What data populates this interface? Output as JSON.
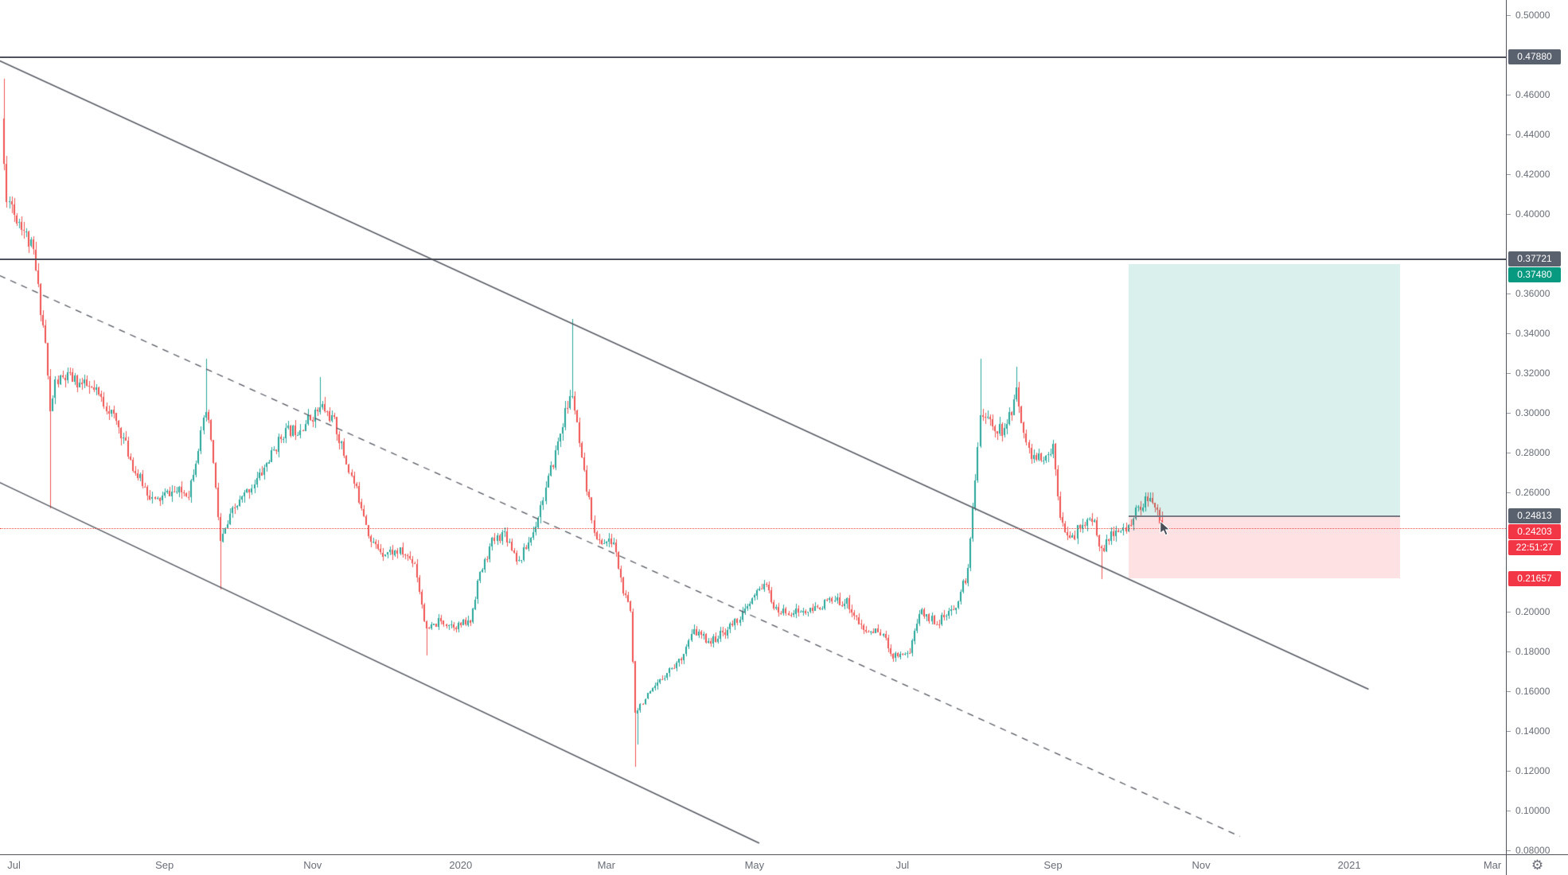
{
  "chart_data": {
    "type": "candlestick",
    "timeframe": "1D",
    "colors": {
      "up": "#26a69a",
      "down": "#ef5350",
      "channel_line": "#545861",
      "resistance_line": "#4d515b",
      "axis_text": "#686d78",
      "axis_border": "#50535e",
      "gray_label_bg": "#5a616e",
      "red_label_bg": "#f23645",
      "teal_label_bg": "#089981",
      "target_box_fill": "rgba(8,153,129,0.15)",
      "stop_box_fill": "rgba(242,54,69,0.15)",
      "entry_line": "#787b86",
      "last_price_line": "#ef5350"
    },
    "price_axis": {
      "visible_min": 0.078,
      "visible_max": 0.5075,
      "tick_step": 0.02,
      "ticks": [
        {
          "label": "0.50000",
          "price": 0.5
        },
        {
          "label": "0.46000",
          "price": 0.46
        },
        {
          "label": "0.44000",
          "price": 0.44
        },
        {
          "label": "0.42000",
          "price": 0.42
        },
        {
          "label": "0.40000",
          "price": 0.4
        },
        {
          "label": "0.36000",
          "price": 0.36
        },
        {
          "label": "0.34000",
          "price": 0.34
        },
        {
          "label": "0.32000",
          "price": 0.32
        },
        {
          "label": "0.30000",
          "price": 0.3
        },
        {
          "label": "0.28000",
          "price": 0.28
        },
        {
          "label": "0.26000",
          "price": 0.26
        },
        {
          "label": "0.20000",
          "price": 0.2
        },
        {
          "label": "0.18000",
          "price": 0.18
        },
        {
          "label": "0.16000",
          "price": 0.16
        },
        {
          "label": "0.14000",
          "price": 0.14
        },
        {
          "label": "0.12000",
          "price": 0.12
        },
        {
          "label": "0.10000",
          "price": 0.1
        },
        {
          "label": "0.08000",
          "price": 0.08
        }
      ]
    },
    "time_axis": {
      "labels": [
        {
          "label": "Jul",
          "day": 4
        },
        {
          "label": "Sep",
          "day": 66
        },
        {
          "label": "Nov",
          "day": 127
        },
        {
          "label": "2020",
          "day": 188
        },
        {
          "label": "Mar",
          "day": 248
        },
        {
          "label": "May",
          "day": 309
        },
        {
          "label": "Jul",
          "day": 370
        },
        {
          "label": "Sep",
          "day": 432
        },
        {
          "label": "Nov",
          "day": 493
        },
        {
          "label": "2021",
          "day": 554
        },
        {
          "label": "Mar",
          "day": 613
        }
      ]
    },
    "series": {
      "days_total": 478,
      "close_anchors": [
        [
          0,
          0.425
        ],
        [
          1,
          0.405
        ],
        [
          2,
          0.41
        ],
        [
          4,
          0.4
        ],
        [
          7,
          0.395
        ],
        [
          12,
          0.38
        ],
        [
          17,
          0.335
        ],
        [
          19,
          0.3
        ],
        [
          21,
          0.315
        ],
        [
          26,
          0.318
        ],
        [
          31,
          0.315
        ],
        [
          38,
          0.31
        ],
        [
          44,
          0.3
        ],
        [
          48,
          0.29
        ],
        [
          54,
          0.27
        ],
        [
          62,
          0.255
        ],
        [
          68,
          0.26
        ],
        [
          76,
          0.26
        ],
        [
          83,
          0.3
        ],
        [
          85,
          0.287
        ],
        [
          89,
          0.235
        ],
        [
          94,
          0.25
        ],
        [
          100,
          0.26
        ],
        [
          106,
          0.27
        ],
        [
          115,
          0.29
        ],
        [
          121,
          0.292
        ],
        [
          131,
          0.303
        ],
        [
          136,
          0.295
        ],
        [
          141,
          0.275
        ],
        [
          148,
          0.25
        ],
        [
          151,
          0.235
        ],
        [
          156,
          0.23
        ],
        [
          163,
          0.23
        ],
        [
          169,
          0.225
        ],
        [
          174,
          0.19
        ],
        [
          179,
          0.195
        ],
        [
          187,
          0.193
        ],
        [
          192,
          0.195
        ],
        [
          195,
          0.215
        ],
        [
          201,
          0.235
        ],
        [
          206,
          0.24
        ],
        [
          212,
          0.225
        ],
        [
          218,
          0.24
        ],
        [
          226,
          0.275
        ],
        [
          231,
          0.3
        ],
        [
          234,
          0.31
        ],
        [
          238,
          0.275
        ],
        [
          244,
          0.235
        ],
        [
          251,
          0.235
        ],
        [
          255,
          0.21
        ],
        [
          258,
          0.2
        ],
        [
          260,
          0.15
        ],
        [
          263,
          0.155
        ],
        [
          267,
          0.16
        ],
        [
          273,
          0.17
        ],
        [
          278,
          0.175
        ],
        [
          284,
          0.19
        ],
        [
          291,
          0.185
        ],
        [
          297,
          0.19
        ],
        [
          305,
          0.2
        ],
        [
          313,
          0.215
        ],
        [
          318,
          0.2
        ],
        [
          325,
          0.2
        ],
        [
          332,
          0.2
        ],
        [
          339,
          0.205
        ],
        [
          347,
          0.205
        ],
        [
          354,
          0.19
        ],
        [
          361,
          0.19
        ],
        [
          366,
          0.178
        ],
        [
          373,
          0.18
        ],
        [
          377,
          0.2
        ],
        [
          384,
          0.195
        ],
        [
          391,
          0.2
        ],
        [
          397,
          0.22
        ],
        [
          401,
          0.285
        ],
        [
          402,
          0.3
        ],
        [
          406,
          0.295
        ],
        [
          412,
          0.29
        ],
        [
          417,
          0.31
        ],
        [
          422,
          0.28
        ],
        [
          428,
          0.275
        ],
        [
          432,
          0.283
        ],
        [
          435,
          0.25
        ],
        [
          439,
          0.235
        ],
        [
          444,
          0.245
        ],
        [
          449,
          0.245
        ],
        [
          452,
          0.23
        ],
        [
          457,
          0.24
        ],
        [
          461,
          0.24
        ],
        [
          466,
          0.25
        ],
        [
          470,
          0.256
        ],
        [
          473,
          0.254
        ],
        [
          476,
          0.246
        ],
        [
          477,
          0.24203
        ]
      ],
      "wick_overrides": [
        {
          "day": 0,
          "open": 0.448,
          "high": 0.468
        },
        {
          "day": 19,
          "low": 0.252
        },
        {
          "day": 83,
          "high": 0.327
        },
        {
          "day": 89,
          "low": 0.211
        },
        {
          "day": 130,
          "high": 0.318
        },
        {
          "day": 174,
          "low": 0.178
        },
        {
          "day": 234,
          "high": 0.347
        },
        {
          "day": 260,
          "low": 0.122
        },
        {
          "day": 261,
          "low": 0.133
        },
        {
          "day": 402,
          "high": 0.327
        },
        {
          "day": 417,
          "high": 0.323
        },
        {
          "day": 452,
          "low": 0.2165
        },
        {
          "day": 477,
          "high": 0.2505
        }
      ],
      "last_close": 0.24203
    }
  },
  "overlays": {
    "resistance_lines": [
      {
        "label": "0.47880",
        "price": 0.4788
      },
      {
        "label": "0.37721",
        "price": 0.37721
      }
    ],
    "channel": {
      "lines": [
        {
          "style": "solid",
          "from_day": -2,
          "from_price": 0.477,
          "to_day": 562,
          "to_price": 0.161
        },
        {
          "style": "dashed",
          "from_day": -2,
          "from_price": 0.369,
          "to_day": 509,
          "to_price": 0.087
        },
        {
          "style": "solid",
          "from_day": -2,
          "from_price": 0.265,
          "to_day": 311,
          "to_price": 0.0836
        }
      ]
    },
    "position_tool": {
      "type": "long",
      "entry_price": 0.24813,
      "entry_label": "0.24813",
      "target_price": 0.3748,
      "target_label": "0.37480",
      "stop_price": 0.21657,
      "stop_label": "0.21657",
      "from_day": 463,
      "to_day": 575
    },
    "last_price": {
      "label": "0.24203",
      "price": 0.24203,
      "countdown": "22:51:27"
    }
  },
  "corner": {
    "settings_icon": "⚙"
  }
}
